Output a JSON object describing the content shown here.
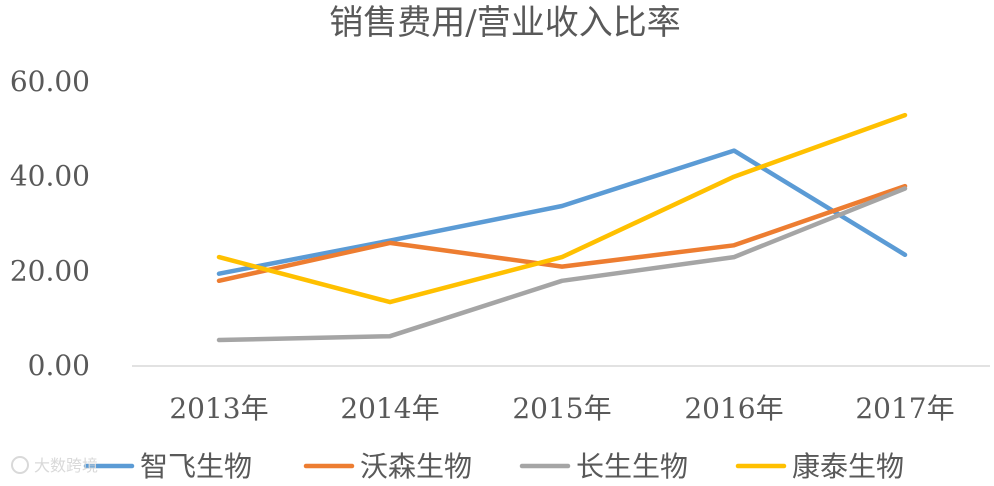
{
  "chart_data": {
    "type": "line",
    "title": "销售费用/营业收入比率",
    "xlabel": "",
    "ylabel": "",
    "categories": [
      "2013年",
      "2014年",
      "2015年",
      "2016年",
      "2017年"
    ],
    "ylim": [
      0,
      60
    ],
    "yticks": [
      "0.00",
      "20.00",
      "40.00",
      "60.00"
    ],
    "grid": false,
    "legend_position": "bottom",
    "series": [
      {
        "name": "智飞生物",
        "color": "#5b9bd5",
        "values": [
          19.5,
          26.5,
          33.8,
          45.5,
          23.5
        ]
      },
      {
        "name": "沃森生物",
        "color": "#ed7d31",
        "values": [
          18.0,
          26.0,
          21.0,
          25.5,
          38.0
        ]
      },
      {
        "name": "长生生物",
        "color": "#a5a5a5",
        "values": [
          5.5,
          6.3,
          18.0,
          23.0,
          37.5
        ]
      },
      {
        "name": "康泰生物",
        "color": "#ffc000",
        "values": [
          23.0,
          13.5,
          23.0,
          40.0,
          53.0
        ]
      }
    ]
  },
  "watermark": {
    "text": "大数跨境"
  }
}
